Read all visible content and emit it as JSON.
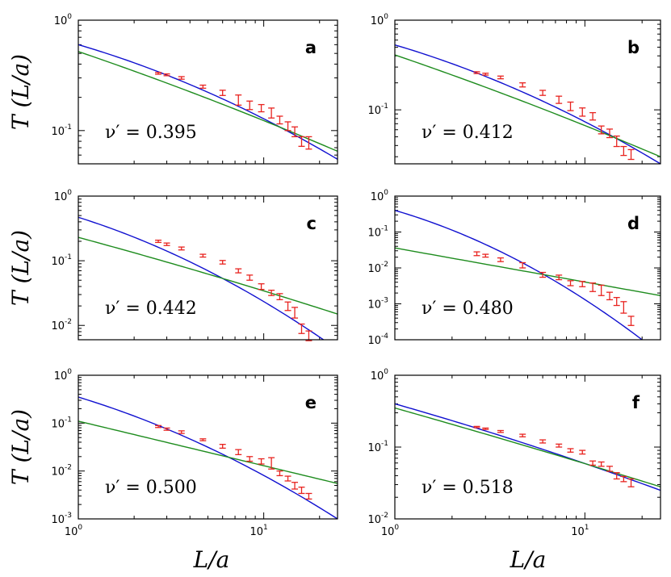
{
  "figure": {
    "ylabel": "T (L/a)",
    "xlabel": "L/a"
  },
  "colors": {
    "blue_curve": "#1010d0",
    "green_curve": "#1e8c1e",
    "data": "#e8231f"
  },
  "chart_data": [
    {
      "type": "scatter",
      "panel": "a",
      "nu_label": "ν′ = 0.395",
      "xscale": "log",
      "yscale": "log",
      "xlim": [
        1,
        25
      ],
      "ylim": [
        0.05,
        1
      ],
      "yticks": [
        {
          "base": "10",
          "exp": "-1",
          "value": 0.1
        },
        {
          "base": "10",
          "exp": "0",
          "value": 1
        }
      ],
      "xticks": [
        {
          "base": "10",
          "exp": "0",
          "value": 1
        },
        {
          "base": "10",
          "exp": "1",
          "value": 10
        }
      ],
      "series": [
        {
          "name": "data",
          "x": [
            2.7,
            3.0,
            3.6,
            4.7,
            6.0,
            7.3,
            8.4,
            9.7,
            11.0,
            12.2,
            13.5,
            14.7,
            16.0,
            17.5
          ],
          "y": [
            0.33,
            0.32,
            0.3,
            0.25,
            0.22,
            0.19,
            0.17,
            0.16,
            0.145,
            0.125,
            0.11,
            0.098,
            0.08,
            0.078
          ],
          "err": [
            0.006,
            0.006,
            0.008,
            0.008,
            0.012,
            0.02,
            0.015,
            0.012,
            0.015,
            0.01,
            0.01,
            0.01,
            0.008,
            0.01
          ]
        },
        {
          "name": "blue fit",
          "x": [
            1,
            25
          ],
          "y": [
            0.6,
            0.055
          ],
          "curvature": -0.35
        },
        {
          "name": "green fit",
          "x": [
            1,
            25
          ],
          "y": [
            0.52,
            0.065
          ],
          "curvature": -0.1
        }
      ]
    },
    {
      "type": "scatter",
      "panel": "b",
      "nu_label": "ν′ = 0.412",
      "xscale": "log",
      "yscale": "log",
      "xlim": [
        1,
        25
      ],
      "ylim": [
        0.025,
        1
      ],
      "yticks": [
        {
          "base": "10",
          "exp": "-1",
          "value": 0.1
        },
        {
          "base": "10",
          "exp": "0",
          "value": 1
        }
      ],
      "xticks": [
        {
          "base": "10",
          "exp": "0",
          "value": 1
        },
        {
          "base": "10",
          "exp": "1",
          "value": 10
        }
      ],
      "series": [
        {
          "name": "data",
          "x": [
            2.7,
            3.0,
            3.6,
            4.7,
            6.0,
            7.3,
            8.4,
            9.7,
            11.0,
            12.2,
            13.5,
            14.7,
            16.0,
            17.5
          ],
          "y": [
            0.26,
            0.25,
            0.23,
            0.19,
            0.155,
            0.13,
            0.11,
            0.095,
            0.085,
            0.06,
            0.055,
            0.045,
            0.035,
            0.032
          ],
          "err": [
            0.006,
            0.006,
            0.008,
            0.01,
            0.01,
            0.012,
            0.012,
            0.01,
            0.008,
            0.006,
            0.006,
            0.006,
            0.004,
            0.004
          ]
        },
        {
          "name": "blue fit",
          "x": [
            1,
            25
          ],
          "y": [
            0.53,
            0.025
          ],
          "curvature": -0.45
        },
        {
          "name": "green fit",
          "x": [
            1,
            25
          ],
          "y": [
            0.41,
            0.03
          ],
          "curvature": -0.12
        }
      ]
    },
    {
      "type": "scatter",
      "panel": "c",
      "nu_label": "ν′ = 0.442",
      "xscale": "log",
      "yscale": "log",
      "xlim": [
        1,
        25
      ],
      "ylim": [
        0.006,
        1
      ],
      "yticks": [
        {
          "base": "10",
          "exp": "-2",
          "value": 0.01
        },
        {
          "base": "10",
          "exp": "-1",
          "value": 0.1
        },
        {
          "base": "10",
          "exp": "0",
          "value": 1
        }
      ],
      "xticks": [
        {
          "base": "10",
          "exp": "0",
          "value": 1
        },
        {
          "base": "10",
          "exp": "1",
          "value": 10
        }
      ],
      "series": [
        {
          "name": "data",
          "x": [
            2.7,
            3.0,
            3.6,
            4.7,
            6.0,
            7.3,
            8.4,
            9.7,
            11.0,
            12.2,
            13.5,
            14.7,
            16.0,
            17.5
          ],
          "y": [
            0.2,
            0.18,
            0.155,
            0.12,
            0.095,
            0.07,
            0.055,
            0.04,
            0.032,
            0.028,
            0.02,
            0.016,
            0.009,
            0.007
          ],
          "err": [
            0.008,
            0.008,
            0.008,
            0.006,
            0.006,
            0.005,
            0.005,
            0.004,
            0.003,
            0.003,
            0.003,
            0.003,
            0.0015,
            0.0012
          ]
        },
        {
          "name": "blue fit",
          "x": [
            1,
            21
          ],
          "y": [
            0.47,
            0.006
          ],
          "curvature": -0.7
        },
        {
          "name": "green fit",
          "x": [
            1,
            25
          ],
          "y": [
            0.23,
            0.015
          ],
          "curvature": -0.1
        }
      ]
    },
    {
      "type": "scatter",
      "panel": "d",
      "nu_label": "ν′ = 0.480",
      "xscale": "log",
      "yscale": "log",
      "xlim": [
        1,
        25
      ],
      "ylim": [
        0.0001,
        1
      ],
      "yticks": [
        {
          "base": "10",
          "exp": "-4",
          "value": 0.0001
        },
        {
          "base": "10",
          "exp": "-3",
          "value": 0.001
        },
        {
          "base": "10",
          "exp": "-2",
          "value": 0.01
        },
        {
          "base": "10",
          "exp": "-1",
          "value": 0.1
        },
        {
          "base": "10",
          "exp": "0",
          "value": 1
        }
      ],
      "xticks": [
        {
          "base": "10",
          "exp": "0",
          "value": 1
        },
        {
          "base": "10",
          "exp": "1",
          "value": 10
        }
      ],
      "series": [
        {
          "name": "data",
          "x": [
            2.7,
            3.0,
            3.6,
            4.7,
            6.0,
            7.3,
            8.4,
            9.7,
            11.0,
            12.2,
            13.5,
            14.7,
            16.0,
            17.5
          ],
          "y": [
            0.025,
            0.022,
            0.017,
            0.012,
            0.0065,
            0.0055,
            0.0038,
            0.0036,
            0.003,
            0.0025,
            0.0017,
            0.0012,
            0.00085,
            0.00035
          ],
          "err": [
            0.003,
            0.002,
            0.002,
            0.002,
            0.001,
            0.0008,
            0.0006,
            0.0006,
            0.0008,
            0.0008,
            0.0004,
            0.0003,
            0.0003,
            0.0001
          ]
        },
        {
          "name": "blue fit",
          "x": [
            1,
            20
          ],
          "y": [
            0.4,
            0.0001
          ],
          "curvature": -1.6
        },
        {
          "name": "green fit",
          "x": [
            1,
            25
          ],
          "y": [
            0.036,
            0.0017
          ],
          "curvature": 0
        }
      ]
    },
    {
      "type": "scatter",
      "panel": "e",
      "nu_label": "ν′ = 0.500",
      "xscale": "log",
      "yscale": "log",
      "xlim": [
        1,
        25
      ],
      "ylim": [
        0.001,
        1
      ],
      "yticks": [
        {
          "base": "10",
          "exp": "-3",
          "value": 0.001
        },
        {
          "base": "10",
          "exp": "-2",
          "value": 0.01
        },
        {
          "base": "10",
          "exp": "-1",
          "value": 0.1
        },
        {
          "base": "10",
          "exp": "0",
          "value": 1
        }
      ],
      "xticks": [
        {
          "base": "10",
          "exp": "0",
          "value": 1
        },
        {
          "base": "10",
          "exp": "1",
          "value": 10
        }
      ],
      "series": [
        {
          "name": "data",
          "x": [
            2.7,
            3.0,
            3.6,
            4.7,
            6.0,
            7.3,
            8.4,
            9.7,
            11.0,
            12.2,
            13.5,
            14.7,
            16.0,
            17.5
          ],
          "y": [
            0.085,
            0.075,
            0.065,
            0.045,
            0.033,
            0.025,
            0.018,
            0.016,
            0.015,
            0.009,
            0.007,
            0.005,
            0.004,
            0.003
          ],
          "err": [
            0.004,
            0.004,
            0.004,
            0.002,
            0.003,
            0.003,
            0.002,
            0.002,
            0.004,
            0.001,
            0.0008,
            0.0008,
            0.0006,
            0.0004
          ]
        },
        {
          "name": "blue fit",
          "x": [
            1,
            25
          ],
          "y": [
            0.35,
            0.001
          ],
          "curvature": -0.9
        },
        {
          "name": "green fit",
          "x": [
            1,
            25
          ],
          "y": [
            0.11,
            0.0055
          ],
          "curvature": 0
        }
      ]
    },
    {
      "type": "scatter",
      "panel": "f",
      "nu_label": "ν′ = 0.518",
      "xscale": "log",
      "yscale": "log",
      "xlim": [
        1,
        25
      ],
      "ylim": [
        0.01,
        1
      ],
      "yticks": [
        {
          "base": "10",
          "exp": "-2",
          "value": 0.01
        },
        {
          "base": "10",
          "exp": "-1",
          "value": 0.1
        },
        {
          "base": "10",
          "exp": "0",
          "value": 1
        }
      ],
      "xticks": [
        {
          "base": "10",
          "exp": "0",
          "value": 1
        },
        {
          "base": "10",
          "exp": "1",
          "value": 10
        }
      ],
      "series": [
        {
          "name": "data",
          "x": [
            2.7,
            3.0,
            3.6,
            4.7,
            6.0,
            7.3,
            8.4,
            9.7,
            11.0,
            12.2,
            13.5,
            14.7,
            16.0,
            17.5
          ],
          "y": [
            0.19,
            0.18,
            0.165,
            0.145,
            0.12,
            0.105,
            0.09,
            0.085,
            0.06,
            0.058,
            0.05,
            0.04,
            0.036,
            0.032
          ],
          "err": [
            0.004,
            0.004,
            0.005,
            0.006,
            0.006,
            0.005,
            0.005,
            0.005,
            0.004,
            0.004,
            0.004,
            0.004,
            0.003,
            0.004
          ]
        },
        {
          "name": "blue fit",
          "x": [
            1,
            25
          ],
          "y": [
            0.4,
            0.025
          ],
          "curvature": -0.15
        },
        {
          "name": "green fit",
          "x": [
            1,
            25
          ],
          "y": [
            0.35,
            0.028
          ],
          "curvature": -0.05
        }
      ]
    }
  ]
}
